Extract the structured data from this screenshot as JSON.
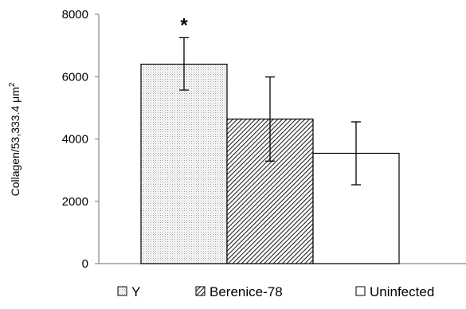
{
  "chart_data": {
    "type": "bar",
    "categories": [
      "Y",
      "Berenice-78",
      "Uninfected"
    ],
    "values": [
      6400,
      4640,
      3540
    ],
    "error_bars": [
      {
        "low": 5570,
        "high": 7250
      },
      {
        "low": 3290,
        "high": 5990
      },
      {
        "low": 2530,
        "high": 4550
      }
    ],
    "ylabel": "Collagen/53,333.4 μm",
    "ylabel_superscript": "2",
    "ylim": [
      0,
      8000
    ],
    "yticks": [
      0,
      2000,
      4000,
      6000,
      8000
    ],
    "yticks_labels": [
      "0",
      "2000",
      "4000",
      "6000",
      "8000"
    ],
    "grid": false,
    "legend": {
      "placement": "bottom",
      "entries": [
        "Y",
        "Berenice-78",
        "Uninfected"
      ]
    },
    "annotations": [
      {
        "category": "Y",
        "text": "*"
      }
    ],
    "fills": [
      "dotted",
      "hatched",
      "white"
    ]
  }
}
